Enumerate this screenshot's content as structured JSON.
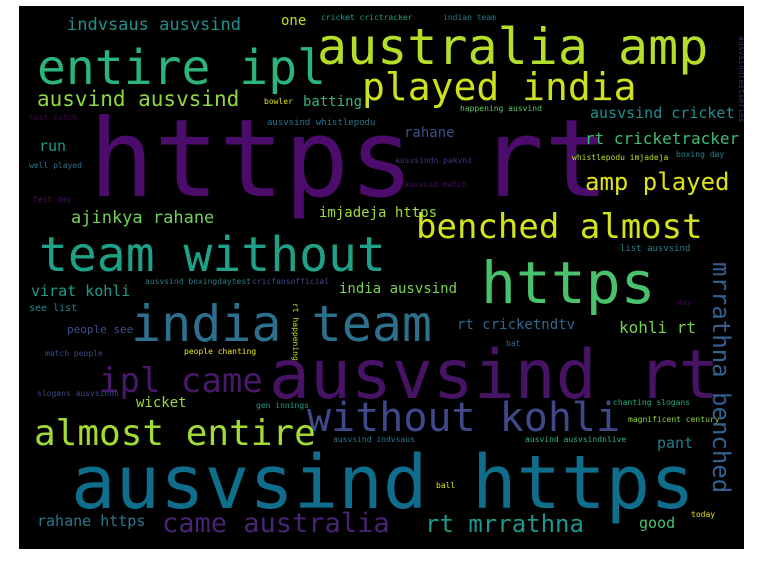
{
  "background": "#000000",
  "words": [
    {
      "text": "https rt",
      "color": "#4b0c6b"
    },
    {
      "text": "ausvsind https",
      "color": "#0e6e8b"
    },
    {
      "text": "australia amp",
      "color": "#b5de2b"
    },
    {
      "text": "entire ipl",
      "color": "#2bb57c"
    },
    {
      "text": "played india",
      "color": "#cde11d"
    },
    {
      "text": "ausvind ausvsind",
      "color": "#90d743"
    },
    {
      "text": "indvsaus ausvsind",
      "color": "#21918c"
    },
    {
      "text": "one",
      "color": "#c2df23"
    },
    {
      "text": "cricket crictracker",
      "color": "#1f9e89"
    },
    {
      "text": "indian team",
      "color": "#2a788e"
    },
    {
      "text": "bowler",
      "color": "#e0e318"
    },
    {
      "text": "batting",
      "color": "#35b779"
    },
    {
      "text": "happening ausvind",
      "color": "#5ec962"
    },
    {
      "text": "ausvsind cricket",
      "color": "#21918c"
    },
    {
      "text": "test match",
      "color": "#440154"
    },
    {
      "text": "ausvsind whistlepodu",
      "color": "#2c728e"
    },
    {
      "text": "rahane",
      "color": "#3b528b"
    },
    {
      "text": "rt cricketracker",
      "color": "#3fbc73"
    },
    {
      "text": "run",
      "color": "#1f9a8a"
    },
    {
      "text": "well played",
      "color": "#2c728e"
    },
    {
      "text": "ausvsindn pakvnz",
      "color": "#46327e"
    },
    {
      "text": "whistlepodu imjadeja",
      "color": "#b5de2b"
    },
    {
      "text": "boxing day",
      "color": "#25848e"
    },
    {
      "text": "amp played",
      "color": "#dde318"
    },
    {
      "text": "ausvind match",
      "color": "#471063"
    },
    {
      "text": "test day",
      "color": "#471063"
    },
    {
      "text": "benched almost",
      "color": "#d2e21b"
    },
    {
      "text": "ajinkya rahane",
      "color": "#73d056"
    },
    {
      "text": "imjadeja https",
      "color": "#9fda3a"
    },
    {
      "text": "team without",
      "color": "#1fa187"
    },
    {
      "text": "list ausvsind",
      "color": "#26828e"
    },
    {
      "text": "https",
      "color": "#4ac16d"
    },
    {
      "text": "virat kohli",
      "color": "#1e9b8a"
    },
    {
      "text": "ausvsind boxingdaytest",
      "color": "#277f8e"
    },
    {
      "text": "cricfansofficial",
      "color": "#3e4989"
    },
    {
      "text": "india ausvsind",
      "color": "#7ad151"
    },
    {
      "text": "india team",
      "color": "#2d708e"
    },
    {
      "text": "see list",
      "color": "#23898e"
    },
    {
      "text": "day",
      "color": "#440154"
    },
    {
      "text": "people see",
      "color": "#3b528b"
    },
    {
      "text": "rt cricketndtv",
      "color": "#31688e"
    },
    {
      "text": "kohli rt",
      "color": "#7ad151"
    },
    {
      "text": "rt happening",
      "color": "#bddf26"
    },
    {
      "text": "ipl came",
      "color": "#48186a"
    },
    {
      "text": "match people",
      "color": "#3e4a89"
    },
    {
      "text": "people chanting",
      "color": "#f1e51d"
    },
    {
      "text": "ausvsind rt",
      "color": "#471365"
    },
    {
      "text": "bat",
      "color": "#2e6e8e"
    },
    {
      "text": "wicket",
      "color": "#9bd93c"
    },
    {
      "text": "slogans ausvsindn",
      "color": "#3e4a89"
    },
    {
      "text": "gen innings",
      "color": "#1f9e89"
    },
    {
      "text": "chanting slogans",
      "color": "#23a983"
    },
    {
      "text": "without kohli",
      "color": "#3f4889"
    },
    {
      "text": "magnificent century",
      "color": "#8fd744"
    },
    {
      "text": "almost entire",
      "color": "#a2da37"
    },
    {
      "text": "pant",
      "color": "#2a788e"
    },
    {
      "text": "ausvsind indvsaus",
      "color": "#2c728e"
    },
    {
      "text": "ausvind ausvsindnlive",
      "color": "#32b67a"
    },
    {
      "text": "ball",
      "color": "#d8e219"
    },
    {
      "text": "today",
      "color": "#e7e419"
    },
    {
      "text": "rahane https",
      "color": "#2a788e"
    },
    {
      "text": "came australia",
      "color": "#482475"
    },
    {
      "text": "rt mrrathna",
      "color": "#1f968b"
    },
    {
      "text": "good",
      "color": "#4ac16d"
    },
    {
      "text": "mrrathna benched",
      "color": "#355f8d"
    },
    {
      "text": "ausvsindtestseries",
      "color": "#482878"
    }
  ]
}
